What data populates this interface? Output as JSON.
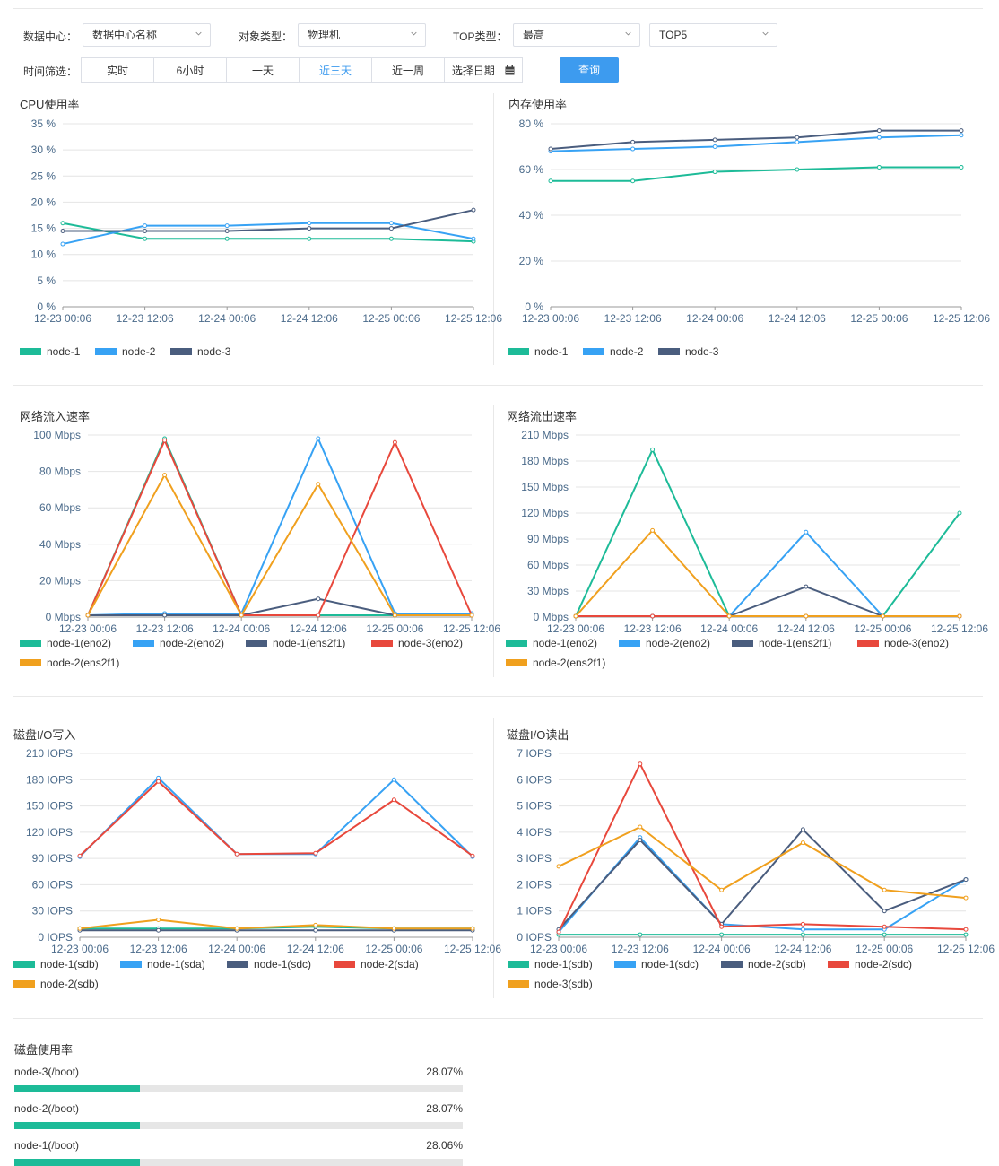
{
  "filters": {
    "datacenter_label": "数据中心：",
    "datacenter_value": "数据中心名称",
    "object_type_label": "对象类型：",
    "object_type_value": "物理机",
    "top_type_label": "TOP类型：",
    "top_type_value": "最高",
    "top_count_value": "TOP5",
    "time_label": "时间筛选：",
    "time_buttons": [
      "实时",
      "6小时",
      "一天",
      "近三天",
      "近一周",
      "选择日期"
    ],
    "active_time": "近三天",
    "query_label": "查询"
  },
  "colors": {
    "green": "#1dbb98",
    "blue": "#37a2f4",
    "navy": "#4a5d7e",
    "red": "#e8483c",
    "orange": "#f0a01e"
  },
  "x_labels": [
    "12-23 00:06",
    "12-23 12:06",
    "12-24 00:06",
    "12-24 12:06",
    "12-25 00:06",
    "12-25 12:06"
  ],
  "chart_data": [
    {
      "id": "cpu",
      "type": "line",
      "title": "CPU使用率",
      "unit": " %",
      "ylim": [
        0,
        35
      ],
      "yticks": [
        0,
        5,
        10,
        15,
        20,
        25,
        30,
        35
      ],
      "x": [
        "12-23 00:06",
        "12-23 12:06",
        "12-24 00:06",
        "12-24 12:06",
        "12-25 00:06",
        "12-25 12:06"
      ],
      "series": [
        {
          "name": "node-1",
          "values": [
            16,
            13,
            13,
            13,
            13,
            12.5
          ]
        },
        {
          "name": "node-2",
          "values": [
            12,
            15.5,
            15.5,
            16,
            16,
            13
          ]
        },
        {
          "name": "node-3",
          "values": [
            14.5,
            14.5,
            14.5,
            15,
            15,
            18.5
          ]
        }
      ]
    },
    {
      "id": "mem",
      "type": "line",
      "title": "内存使用率",
      "unit": " %",
      "ylim": [
        0,
        80
      ],
      "yticks": [
        0,
        20,
        40,
        60,
        80
      ],
      "x": [
        "12-23 00:06",
        "12-23 12:06",
        "12-24 00:06",
        "12-24 12:06",
        "12-25 00:06",
        "12-25 12:06"
      ],
      "series": [
        {
          "name": "node-1",
          "values": [
            55,
            55,
            59,
            60,
            61,
            61
          ]
        },
        {
          "name": "node-2",
          "values": [
            68,
            69,
            70,
            72,
            74,
            75
          ]
        },
        {
          "name": "node-3",
          "values": [
            69,
            72,
            73,
            74,
            77,
            77
          ]
        }
      ]
    },
    {
      "id": "net_in",
      "type": "line",
      "title": "网络流入速率",
      "unit": " Mbps",
      "ylim": [
        0,
        100
      ],
      "yticks": [
        0,
        20,
        40,
        60,
        80,
        100
      ],
      "x": [
        "12-23 00:06",
        "12-23 12:06",
        "12-24 00:06",
        "12-24 12:06",
        "12-25 00:06",
        "12-25 12:06"
      ],
      "series": [
        {
          "name": "node-1(eno2)",
          "values": [
            1,
            98,
            1,
            1,
            1,
            1
          ]
        },
        {
          "name": "node-2(eno2)",
          "values": [
            1,
            2,
            2,
            98,
            2,
            2
          ]
        },
        {
          "name": "node-1(ens2f1)",
          "values": [
            1,
            1,
            1,
            10,
            1,
            1
          ]
        },
        {
          "name": "node-3(eno2)",
          "values": [
            1,
            97,
            1,
            1,
            96,
            1
          ]
        },
        {
          "name": "node-2(ens2f1)",
          "values": [
            1,
            78,
            1,
            73,
            1,
            1
          ]
        }
      ]
    },
    {
      "id": "net_out",
      "type": "line",
      "title": "网络流出速率",
      "unit": " Mbps",
      "ylim": [
        0,
        210
      ],
      "yticks": [
        0,
        30,
        60,
        90,
        120,
        150,
        180,
        210
      ],
      "x": [
        "12-23 00:06",
        "12-23 12:06",
        "12-24 00:06",
        "12-24 12:06",
        "12-25 00:06",
        "12-25 12:06"
      ],
      "series": [
        {
          "name": "node-1(eno2)",
          "values": [
            1,
            193,
            1,
            1,
            1,
            120
          ]
        },
        {
          "name": "node-2(eno2)",
          "values": [
            1,
            1,
            1,
            98,
            1,
            1
          ]
        },
        {
          "name": "node-1(ens2f1)",
          "values": [
            1,
            1,
            1,
            35,
            1,
            1
          ]
        },
        {
          "name": "node-3(eno2)",
          "values": [
            1,
            1,
            1,
            1,
            1,
            1
          ]
        },
        {
          "name": "node-2(ens2f1)",
          "values": [
            1,
            100,
            1,
            1,
            1,
            1
          ]
        }
      ]
    },
    {
      "id": "disk_write",
      "type": "line",
      "title": "磁盘I/O写入",
      "unit": " IOPS",
      "ylim": [
        0,
        210
      ],
      "yticks": [
        0,
        30,
        60,
        90,
        120,
        150,
        180,
        210
      ],
      "x": [
        "12-23 00:06",
        "12-23 12:06",
        "12-24 00:06",
        "12-24 12:06",
        "12-25 00:06",
        "12-25 12:06"
      ],
      "series": [
        {
          "name": "node-1(sdb)",
          "values": [
            10,
            10,
            10,
            12,
            10,
            10
          ]
        },
        {
          "name": "node-1(sda)",
          "values": [
            92,
            182,
            95,
            95,
            180,
            92
          ]
        },
        {
          "name": "node-1(sdc)",
          "values": [
            8,
            8,
            8,
            8,
            8,
            8
          ]
        },
        {
          "name": "node-2(sda)",
          "values": [
            93,
            178,
            95,
            96,
            157,
            93
          ]
        },
        {
          "name": "node-2(sdb)",
          "values": [
            10,
            20,
            10,
            14,
            10,
            10
          ]
        }
      ]
    },
    {
      "id": "disk_read",
      "type": "line",
      "title": "磁盘I/O读出",
      "unit": " IOPS",
      "ylim": [
        0,
        7
      ],
      "yticks": [
        0,
        1,
        2,
        3,
        4,
        5,
        6,
        7
      ],
      "x": [
        "12-23 00:06",
        "12-23 12:06",
        "12-24 00:06",
        "12-24 12:06",
        "12-25 00:06",
        "12-25 12:06"
      ],
      "series": [
        {
          "name": "node-1(sdb)",
          "values": [
            0.1,
            0.1,
            0.1,
            0.1,
            0.1,
            0.1
          ]
        },
        {
          "name": "node-1(sdc)",
          "values": [
            0.2,
            3.8,
            0.5,
            0.3,
            0.3,
            2.2
          ]
        },
        {
          "name": "node-2(sdb)",
          "values": [
            0.3,
            3.7,
            0.5,
            4.1,
            1.0,
            2.2
          ]
        },
        {
          "name": "node-2(sdc)",
          "values": [
            0.2,
            6.6,
            0.4,
            0.5,
            0.4,
            0.3
          ]
        },
        {
          "name": "node-3(sdb)",
          "values": [
            2.7,
            4.2,
            1.8,
            3.6,
            1.8,
            1.5
          ]
        }
      ]
    }
  ],
  "disk_usage": {
    "title": "磁盘使用率",
    "items": [
      {
        "name": "node-3(/boot)",
        "percent_text": "28.07%",
        "percent": 28.07
      },
      {
        "name": "node-2(/boot)",
        "percent_text": "28.07%",
        "percent": 28.07
      },
      {
        "name": "node-1(/boot)",
        "percent_text": "28.06%",
        "percent": 28.06
      }
    ]
  }
}
